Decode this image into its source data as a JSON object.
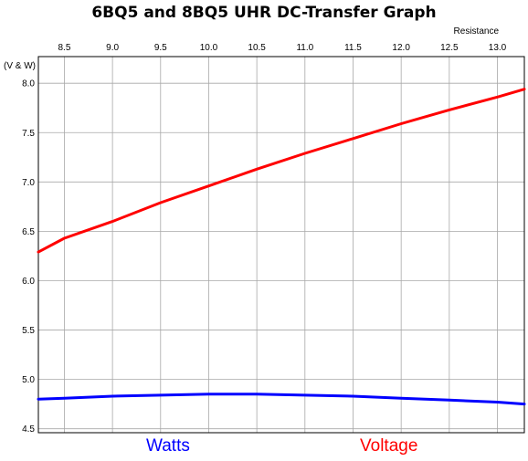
{
  "chart_data": {
    "type": "line",
    "title": "6BQ5 and 8BQ5 UHR DC-Transfer Graph",
    "xlabel": "Resistance",
    "ylabel": "(V & W)",
    "xlim": [
      8.23,
      13.28
    ],
    "ylim": [
      4.46,
      8.27
    ],
    "x_ticks": [
      8.5,
      9.0,
      9.5,
      10.0,
      10.5,
      11.0,
      11.5,
      12.0,
      12.5,
      13.0
    ],
    "x_tick_labels": [
      "8.5",
      "9.0",
      "9.5",
      "10.0",
      "10.5",
      "11.0",
      "11.5",
      "12.0",
      "12.5",
      "13.0"
    ],
    "y_ticks": [
      4.5,
      5.0,
      5.5,
      6.0,
      6.5,
      7.0,
      7.5,
      8.0
    ],
    "y_tick_labels": [
      "4.5",
      "5.0",
      "5.5",
      "6.0",
      "6.5",
      "7.0",
      "7.5",
      "8.0"
    ],
    "grid": true,
    "legend_placement": "bottom",
    "series": [
      {
        "name": "Watts",
        "color": "#0000ff",
        "x": [
          8.23,
          8.5,
          9.0,
          9.5,
          10.0,
          10.5,
          11.0,
          11.5,
          12.0,
          12.5,
          13.0,
          13.28
        ],
        "y": [
          4.8,
          4.81,
          4.83,
          4.84,
          4.85,
          4.85,
          4.84,
          4.83,
          4.81,
          4.79,
          4.77,
          4.75
        ]
      },
      {
        "name": "Voltage",
        "color": "#ff0000",
        "x": [
          8.23,
          8.5,
          9.0,
          9.5,
          10.0,
          10.5,
          11.0,
          11.5,
          12.0,
          12.5,
          13.0,
          13.28
        ],
        "y": [
          6.29,
          6.43,
          6.6,
          6.79,
          6.96,
          7.13,
          7.29,
          7.44,
          7.59,
          7.73,
          7.86,
          7.94
        ]
      }
    ]
  }
}
